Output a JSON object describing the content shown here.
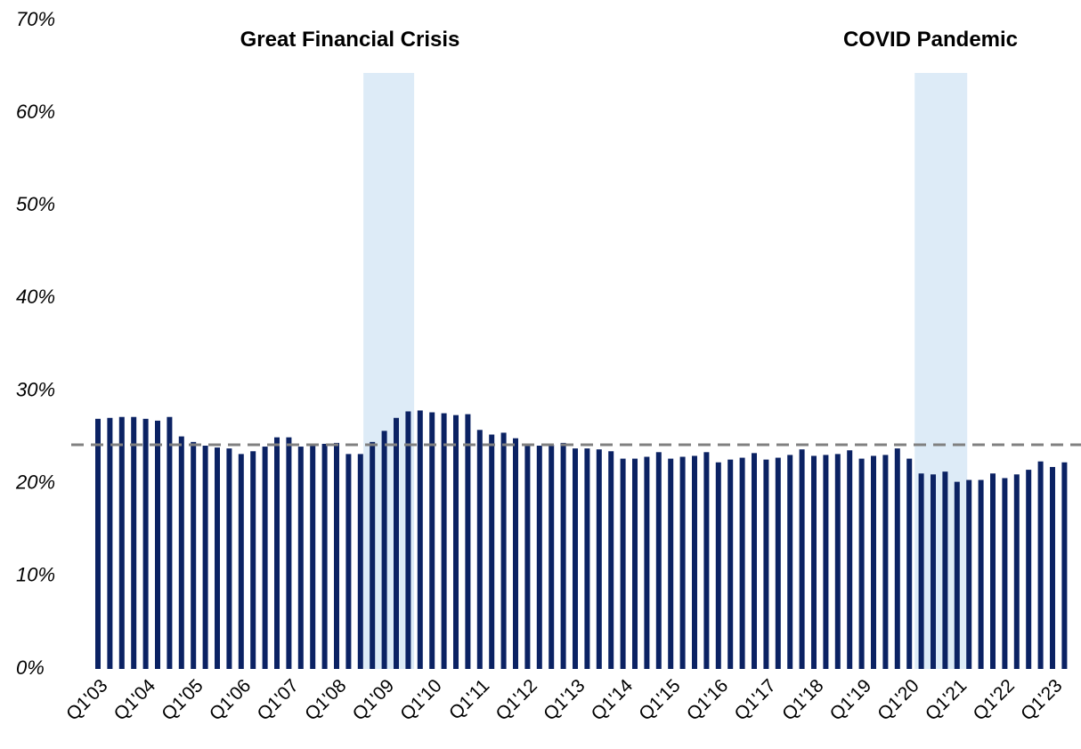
{
  "chart_data": {
    "type": "bar",
    "categories": [
      "Q1'03",
      null,
      null,
      null,
      "Q1'04",
      null,
      null,
      null,
      "Q1'05",
      null,
      null,
      null,
      "Q1'06",
      null,
      null,
      null,
      "Q1'07",
      null,
      null,
      null,
      "Q1'08",
      null,
      null,
      null,
      "Q1'09",
      null,
      null,
      null,
      "Q1'10",
      null,
      null,
      null,
      "Q1'11",
      null,
      null,
      null,
      "Q1'12",
      null,
      null,
      null,
      "Q1'13",
      null,
      null,
      null,
      "Q1'14",
      null,
      null,
      null,
      "Q1'15",
      null,
      null,
      null,
      "Q1'16",
      null,
      null,
      null,
      "Q1'17",
      null,
      null,
      null,
      "Q1'18",
      null,
      null,
      null,
      "Q1'19",
      null,
      null,
      null,
      "Q1'20",
      null,
      null,
      null,
      "Q1'21",
      null,
      null,
      null,
      "Q1'22",
      null,
      null,
      null,
      "Q1'23",
      null
    ],
    "values": [
      27.0,
      27.1,
      27.2,
      27.2,
      27.0,
      26.8,
      27.2,
      25.1,
      24.5,
      24.1,
      23.9,
      23.8,
      23.2,
      23.5,
      24.0,
      25.0,
      25.0,
      24.0,
      24.1,
      24.3,
      24.4,
      23.2,
      23.2,
      24.5,
      25.7,
      27.1,
      27.8,
      27.9,
      27.7,
      27.6,
      27.4,
      27.5,
      25.8,
      25.3,
      25.5,
      24.9,
      24.2,
      24.1,
      24.2,
      24.4,
      23.8,
      23.8,
      23.7,
      23.5,
      22.7,
      22.7,
      22.9,
      23.4,
      22.7,
      22.9,
      23.0,
      23.4,
      22.3,
      22.6,
      22.8,
      23.3,
      22.6,
      22.8,
      23.1,
      23.7,
      23.0,
      23.1,
      23.2,
      23.6,
      22.7,
      23.0,
      23.1,
      23.8,
      22.7,
      21.1,
      21.0,
      21.3,
      20.2,
      20.4,
      20.4,
      21.1,
      20.6,
      21.0,
      21.5,
      22.4,
      21.8,
      22.3
    ],
    "color": "#0b2263",
    "ylim": [
      0,
      70
    ],
    "yticks": [
      {
        "value": 0,
        "label": "0%"
      },
      {
        "value": 10,
        "label": "10%"
      },
      {
        "value": 20,
        "label": "20%"
      },
      {
        "value": 30,
        "label": "30%"
      },
      {
        "value": 40,
        "label": "40%"
      },
      {
        "value": 50,
        "label": "50%"
      },
      {
        "value": 60,
        "label": "60%"
      },
      {
        "value": 70,
        "label": "70%"
      }
    ],
    "reference_line": {
      "value": 24.2,
      "color": "#808080"
    },
    "shaded_periods": [
      {
        "label": "Great Financial Crisis",
        "from": 22.75,
        "to": 27.0,
        "color": "#ddebf7"
      },
      {
        "label": "COVID Pandemic",
        "from": 68.95,
        "to": 73.35,
        "color": "#ddebf7"
      }
    ]
  }
}
